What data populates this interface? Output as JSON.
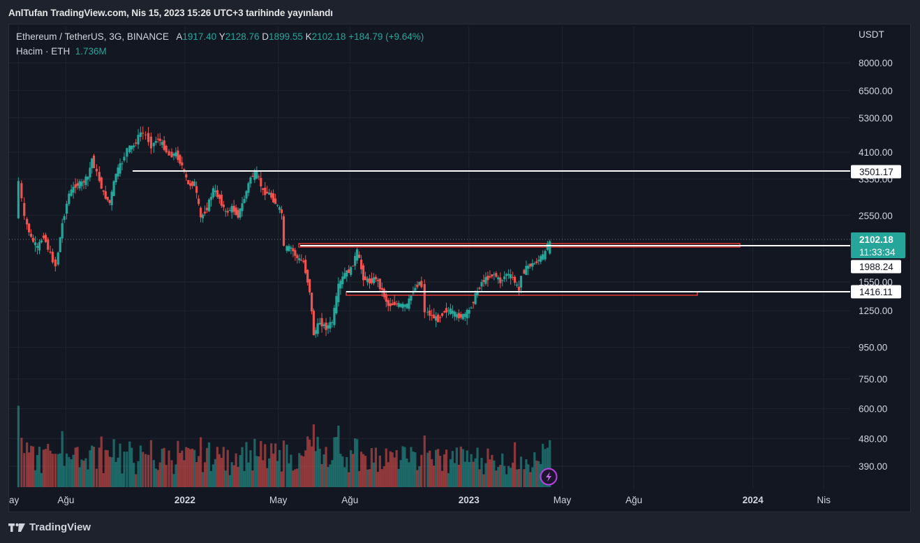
{
  "header": {
    "caption": "AnlTufan TradingView.com, Nis 15, 2023 15:26 UTC+3 tarihinde yayınlandı"
  },
  "legend": {
    "symbol": "Ethereum / TetherUS, 3G, BINANCE",
    "open_key": "A",
    "open": "1917.40",
    "high_key": "Y",
    "high": "2128.76",
    "low_key": "D",
    "low": "1899.55",
    "close_key": "K",
    "close": "2102.18",
    "change": "+184.79 (+9.64%)",
    "volume_label": "Hacim · ETH",
    "volume_value": "1.736M"
  },
  "axis": {
    "currency": "USDT",
    "y_ticks": [
      "8000.00",
      "6500.00",
      "5300.00",
      "4100.00",
      "3350.00",
      "2550.00",
      "1550.00",
      "1250.00",
      "950.00",
      "750.00",
      "600.00",
      "480.00",
      "390.00"
    ],
    "x_ticks": [
      "ay",
      "Ağu",
      "2022",
      "May",
      "Ağu",
      "2023",
      "May",
      "Ağu",
      "2024",
      "Nis"
    ]
  },
  "price_tags": {
    "current_price": "2102.18",
    "countdown": "11:33:34",
    "level_1": "3501.17",
    "level_2": "1988.24",
    "level_3": "1416.11"
  },
  "footer": {
    "brand": "TradingView"
  },
  "colors": {
    "up": "#26a69a",
    "down": "#ef5350",
    "background": "#131722",
    "level_line": "#ffffff",
    "zone": "#e53935"
  },
  "icons": {
    "lightning": "lightning-icon",
    "logo": "tradingview-logo-icon"
  },
  "chart_data": {
    "type": "candlestick",
    "symbol": "ETHUSDT",
    "interval": "3G",
    "log_scale": true,
    "grid": true,
    "y_range": [
      330,
      10500
    ],
    "last": {
      "open": 1917.4,
      "high": 2128.76,
      "low": 1899.55,
      "close": 2102.18
    },
    "horizontal_levels": [
      3501.17,
      1988.24,
      1416.11
    ],
    "series": [
      {
        "name": "price_path",
        "points": [
          [
            "2021-06-01",
            2500
          ],
          [
            "2021-06-05",
            3300
          ],
          [
            "2021-06-12",
            2500
          ],
          [
            "2021-06-20",
            2150
          ],
          [
            "2021-06-28",
            2000
          ],
          [
            "2021-07-06",
            2200
          ],
          [
            "2021-07-15",
            1900
          ],
          [
            "2021-07-22",
            1750
          ],
          [
            "2021-07-30",
            2400
          ],
          [
            "2021-08-08",
            3000
          ],
          [
            "2021-08-16",
            3200
          ],
          [
            "2021-08-24",
            3250
          ],
          [
            "2021-09-01",
            3400
          ],
          [
            "2021-09-06",
            3900
          ],
          [
            "2021-09-13",
            3500
          ],
          [
            "2021-09-21",
            3000
          ],
          [
            "2021-09-29",
            2800
          ],
          [
            "2021-10-07",
            3500
          ],
          [
            "2021-10-15",
            3800
          ],
          [
            "2021-10-22",
            4200
          ],
          [
            "2021-10-30",
            4300
          ],
          [
            "2021-11-08",
            4750
          ],
          [
            "2021-11-15",
            4650
          ],
          [
            "2021-11-22",
            4300
          ],
          [
            "2021-11-30",
            4550
          ],
          [
            "2021-12-08",
            4250
          ],
          [
            "2021-12-15",
            4000
          ],
          [
            "2021-12-23",
            4050
          ],
          [
            "2021-12-31",
            3700
          ],
          [
            "2022-01-08",
            3200
          ],
          [
            "2022-01-16",
            3250
          ],
          [
            "2022-01-24",
            2500
          ],
          [
            "2022-02-01",
            2700
          ],
          [
            "2022-02-09",
            3100
          ],
          [
            "2022-02-17",
            2900
          ],
          [
            "2022-02-25",
            2600
          ],
          [
            "2022-03-05",
            2700
          ],
          [
            "2022-03-13",
            2550
          ],
          [
            "2022-03-21",
            2900
          ],
          [
            "2022-03-29",
            3400
          ],
          [
            "2022-04-06",
            3500
          ],
          [
            "2022-04-14",
            3050
          ],
          [
            "2022-04-22",
            3000
          ],
          [
            "2022-04-30",
            2800
          ],
          [
            "2022-05-08",
            2600
          ],
          [
            "2022-05-12",
            2000
          ],
          [
            "2022-05-20",
            2000
          ],
          [
            "2022-05-28",
            1850
          ],
          [
            "2022-06-05",
            1800
          ],
          [
            "2022-06-13",
            1450
          ],
          [
            "2022-06-18",
            1050
          ],
          [
            "2022-06-26",
            1150
          ],
          [
            "2022-07-04",
            1100
          ],
          [
            "2022-07-12",
            1150
          ],
          [
            "2022-07-20",
            1500
          ],
          [
            "2022-07-28",
            1650
          ],
          [
            "2022-08-05",
            1700
          ],
          [
            "2022-08-13",
            1950
          ],
          [
            "2022-08-21",
            1600
          ],
          [
            "2022-08-29",
            1550
          ],
          [
            "2022-09-06",
            1600
          ],
          [
            "2022-09-14",
            1450
          ],
          [
            "2022-09-22",
            1300
          ],
          [
            "2022-09-30",
            1320
          ],
          [
            "2022-10-08",
            1300
          ],
          [
            "2022-10-16",
            1300
          ],
          [
            "2022-10-24",
            1450
          ],
          [
            "2022-11-01",
            1550
          ],
          [
            "2022-11-05",
            1500
          ],
          [
            "2022-11-09",
            1250
          ],
          [
            "2022-11-17",
            1200
          ],
          [
            "2022-11-25",
            1170
          ],
          [
            "2022-12-03",
            1250
          ],
          [
            "2022-12-11",
            1250
          ],
          [
            "2022-12-19",
            1200
          ],
          [
            "2022-12-27",
            1200
          ],
          [
            "2023-01-04",
            1250
          ],
          [
            "2023-01-12",
            1400
          ],
          [
            "2023-01-20",
            1550
          ],
          [
            "2023-01-28",
            1600
          ],
          [
            "2023-02-05",
            1650
          ],
          [
            "2023-02-13",
            1550
          ],
          [
            "2023-02-21",
            1650
          ],
          [
            "2023-03-01",
            1600
          ],
          [
            "2023-03-09",
            1450
          ],
          [
            "2023-03-13",
            1650
          ],
          [
            "2023-03-21",
            1750
          ],
          [
            "2023-03-29",
            1780
          ],
          [
            "2023-04-06",
            1860
          ],
          [
            "2023-04-12",
            1920
          ],
          [
            "2023-04-15",
            2102.18
          ]
        ]
      }
    ]
  }
}
